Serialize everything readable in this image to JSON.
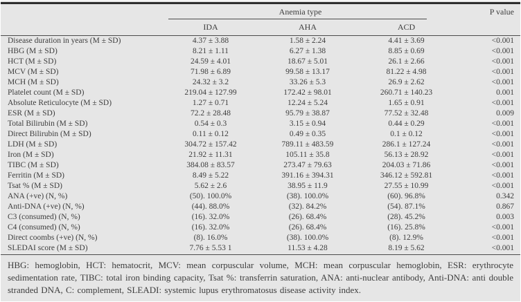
{
  "page": {
    "background_color": "#e6e6e6",
    "text_color": "#3d3d3d",
    "rule_color": "#2d2d2d"
  },
  "table": {
    "header": {
      "group_label": "Anemia type",
      "columns": [
        "IDA",
        "AHA",
        "ACD"
      ],
      "p_label": "P value"
    },
    "rows": [
      {
        "label": "Disease duration in years (M ± SD)",
        "ida": "4.37 ± 3.88",
        "aha": "1.58 ± 2.24",
        "acd": "4.41 ± 3.69",
        "p": "<0.001"
      },
      {
        "label": "HBG (M ± SD)",
        "ida": "8.21 ± 1.11",
        "aha": "6.27 ± 1.38",
        "acd": "8.85 ± 0.69",
        "p": "<0.001"
      },
      {
        "label": "HCT (M ± SD)",
        "ida": "24.59 ± 4.01",
        "aha": "18.67 ± 5.01",
        "acd": "26.1 ± 2.66",
        "p": "<0.001"
      },
      {
        "label": "MCV (M ± SD)",
        "ida": "71.98 ± 6.89",
        "aha": "99.58 ± 13.17",
        "acd": "81.22 ± 4.98",
        "p": "<0.001"
      },
      {
        "label": "MCH (M ± SD)",
        "ida": "24.32 ± 3.2",
        "aha": "33.26 ± 5.3",
        "acd": "26.9 ± 2.62",
        "p": "<0.001"
      },
      {
        "label": "Platelet count (M ± SD)",
        "ida": "219.04 ± 127.99",
        "aha": "172.42 ± 98.01",
        "acd": "260.71 ± 140.23",
        "p": "0.001"
      },
      {
        "label": "Absolute Reticulocyte (M ± SD)",
        "ida": "1.27 ± 0.71",
        "aha": "12.24 ± 5.24",
        "acd": "1.65 ± 0.91",
        "p": "<0.001"
      },
      {
        "label": "ESR (M ± SD)",
        "ida": "72.2 ± 28.48",
        "aha": "95.79 ± 38.87",
        "acd": "77.52 ± 32.48",
        "p": "0.009"
      },
      {
        "label": "Total Bilirubin (M ± SD)",
        "ida": "0.54 ± 0.3",
        "aha": "3.15 ± 0.94",
        "acd": "0.44 ± 0.29",
        "p": "<0.001"
      },
      {
        "label": "Direct Bilirubin (M ± SD)",
        "ida": "0.11 ± 0.12",
        "aha": "0.49 ± 0.35",
        "acd": "0.1 ± 0.12",
        "p": "<0.001"
      },
      {
        "label": "LDH (M ± SD)",
        "ida": "304.72 ± 157.42",
        "aha": "789.11 ± 483.59",
        "acd": "286.1 ± 127.24",
        "p": "<0.001"
      },
      {
        "label": "Iron (M ± SD)",
        "ida": "21.92 ± 11.31",
        "aha": "105.11 ± 35.8",
        "acd": "56.13 ± 28.92",
        "p": "<0.001"
      },
      {
        "label": "TIBC (M ± SD)",
        "ida": "384.08 ± 83.57",
        "aha": "273.47 ± 79.63",
        "acd": "204.03 ± 71.86",
        "p": "<0.001"
      },
      {
        "label": "Ferritin (M ± SD)",
        "ida": "8.49 ± 5.22",
        "aha": "391.16 ± 394.31",
        "acd": "346.12 ± 592.81",
        "p": "<0.001"
      },
      {
        "label": "Tsat % (M ± SD)",
        "ida": "5.62 ± 2.6",
        "aha": "38.95 ± 11.9",
        "acd": "27.55 ± 10.99",
        "p": "<0.001"
      },
      {
        "label": "ANA (+ve) (N, %)",
        "ida": "(50). 100.0%",
        "aha": "(38). 100.0%",
        "acd": "(60). 96.8%",
        "p": "0.342"
      },
      {
        "label": "Anti-DNA (+ve) (N, %)",
        "ida": "(44). 88.0%",
        "aha": "(32). 84.2%",
        "acd": "(54). 87.1%",
        "p": "0.867"
      },
      {
        "label": "C3 (consumed) (N, %)",
        "ida": "(16). 32.0%",
        "aha": "(26). 68.4%",
        "acd": "(28). 45.2%",
        "p": "0.003"
      },
      {
        "label": "C4 (consumed) (N, %)",
        "ida": "(16). 32.0%",
        "aha": "(26). 68.4%",
        "acd": "(16). 25.8%",
        "p": "<0.001"
      },
      {
        "label": "Direct coombs (+ve) (N, %)",
        "ida": "(8). 16.0%",
        "aha": "(38). 100.0%",
        "acd": "(8). 12.9%",
        "p": "<0.001"
      },
      {
        "label": "SLEDAI score (M ± SD)",
        "ida": "7.76 ± 5.53 1",
        "aha": "11.53 ± 4.28",
        "acd": "8.19 ± 5.62",
        "p": "<0.001"
      }
    ],
    "footnote": "HBG: hemoglobin, HCT: hematocrit, MCV: mean corpuscular volume, MCH: mean corpuscular hemoglobin, ESR: erythrocyte sedimentation rate, TIBC: total iron binding capacity, Tsat %: transferrin saturation, ANA: anti-nuclear antibody, Anti-DNA: anti double stranded DNA, C: complement, SLEADI: systemic lupus erythromatosus disease activity index."
  }
}
